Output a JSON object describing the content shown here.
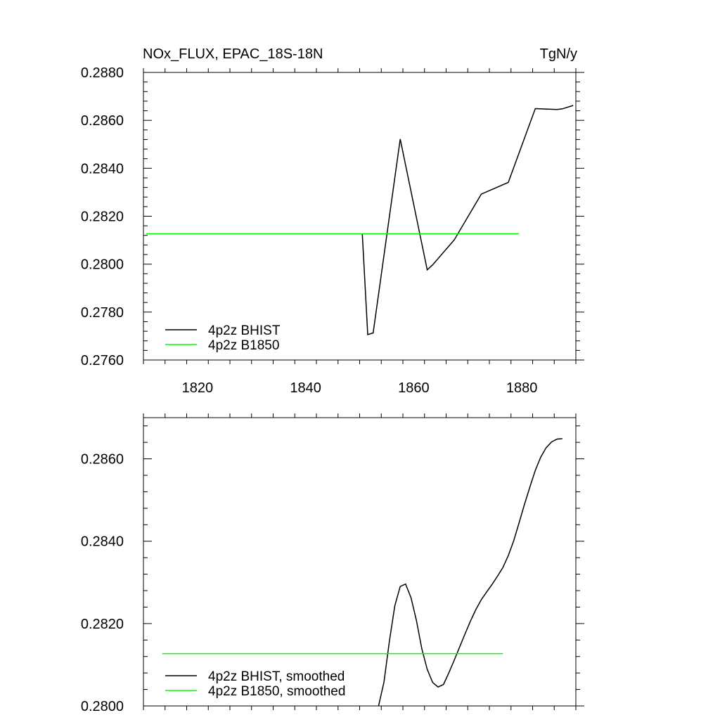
{
  "chart_data": [
    {
      "type": "line",
      "title": "NOx_FLUX, EPAC_18S-18N",
      "units": "TgN/y",
      "xlim": [
        1810,
        1890
      ],
      "ylim": [
        0.276,
        0.288
      ],
      "xticks": [
        1820,
        1840,
        1860,
        1880
      ],
      "xtick_labels": [
        "1820",
        "1840",
        "1860",
        "1880"
      ],
      "yticks": [
        0.276,
        0.278,
        0.28,
        0.282,
        0.284,
        0.286,
        0.288
      ],
      "ytick_labels": [
        "0.2760",
        "0.2780",
        "0.2800",
        "0.2820",
        "0.2840",
        "0.2860",
        "0.2880"
      ],
      "grid": false,
      "legend_position": "bottom-left",
      "series": [
        {
          "name": "4p2z BHIST",
          "color": "#000000",
          "x": [
            1850.5,
            1851.5,
            1852.5,
            1857.5,
            1862.5,
            1863.5,
            1866.5,
            1867.5,
            1872.5,
            1877.5,
            1882.5,
            1886.5,
            1887.5,
            1889.5
          ],
          "y": [
            0.28125,
            0.27706,
            0.27713,
            0.28522,
            0.27976,
            0.27997,
            0.28075,
            0.28101,
            0.28292,
            0.28341,
            0.28649,
            0.28645,
            0.28648,
            0.28662
          ]
        },
        {
          "name": "4p2z B1850",
          "color": "#00ff00",
          "x": [
            1810.5,
            1879.5
          ],
          "y": [
            0.28127,
            0.28127
          ]
        }
      ]
    },
    {
      "type": "line",
      "xlim": [
        1810,
        1890
      ],
      "ylim": [
        0.28,
        0.287
      ],
      "xticks": [
        1820,
        1840,
        1860,
        1880
      ],
      "yticks": [
        0.28,
        0.282,
        0.284,
        0.286
      ],
      "ytick_labels": [
        "0.2800",
        "0.2820",
        "0.2840",
        "0.2860"
      ],
      "grid": false,
      "legend_position": "bottom-left",
      "series": [
        {
          "name": "4p2z BHIST, smoothed",
          "color": "#000000",
          "x": [
            1853.5,
            1854.5,
            1855.5,
            1856.5,
            1857.5,
            1858.5,
            1859.5,
            1860.5,
            1861.5,
            1862.5,
            1863.5,
            1864.5,
            1865.5,
            1866.5,
            1867.5,
            1868.5,
            1869.5,
            1870.5,
            1871.5,
            1872.5,
            1873.5,
            1874.5,
            1875.5,
            1876.5,
            1877.5,
            1878.5,
            1879.5,
            1880.5,
            1881.5,
            1882.5,
            1883.5,
            1884.5,
            1885.5,
            1886.5,
            1887.5
          ],
          "y": [
            0.28,
            0.28058,
            0.28157,
            0.28243,
            0.2829,
            0.28296,
            0.28263,
            0.28208,
            0.28139,
            0.28089,
            0.28057,
            0.28046,
            0.28052,
            0.2808,
            0.28111,
            0.28143,
            0.28175,
            0.28206,
            0.28234,
            0.28258,
            0.28277,
            0.28295,
            0.28315,
            0.28336,
            0.28365,
            0.28401,
            0.28445,
            0.2849,
            0.28532,
            0.28572,
            0.28604,
            0.28627,
            0.28641,
            0.28648,
            0.28649
          ]
        },
        {
          "name": "4p2z B1850, smoothed",
          "color": "#00ff00",
          "x": [
            1813.5,
            1876.5
          ],
          "y": [
            0.28127,
            0.28127
          ]
        }
      ]
    }
  ]
}
